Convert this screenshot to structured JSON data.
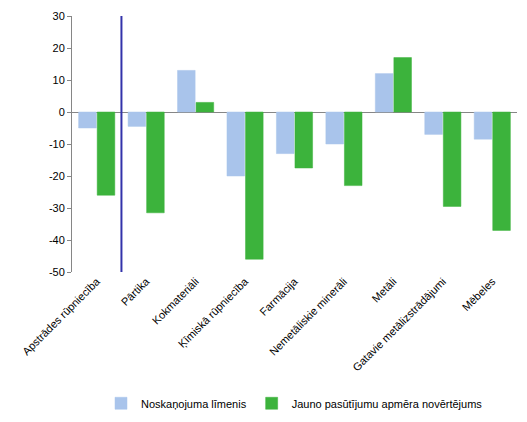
{
  "chart_data": {
    "type": "bar",
    "categories": [
      "Apstrādes rūpniecība",
      "Pārtika",
      "Kokmateriāli",
      "Ķīmiskā rūpniecība",
      "Farmācija",
      "Nemetāliskie minerāli",
      "Metāli",
      "Gatavie metālizstrādājumi",
      "Mēbeles"
    ],
    "series": [
      {
        "name": "Noskaņojuma līmenis",
        "color": "#a9c4eb",
        "values": [
          -5,
          -4.5,
          13,
          -20,
          -13,
          -10,
          12,
          -7,
          -8.5
        ]
      },
      {
        "name": "Jauno pasūtījumu apmēra novērtējums",
        "color": "#3cb33c",
        "values": [
          -26,
          -31.5,
          3,
          -46,
          -17.5,
          -23,
          17,
          -29.5,
          -37
        ]
      }
    ],
    "ylim": [
      -50,
      30
    ],
    "yticks": [
      -50,
      -40,
      -30,
      -20,
      -10,
      0,
      10,
      20,
      30
    ],
    "grid": false,
    "legend": "bottom"
  }
}
